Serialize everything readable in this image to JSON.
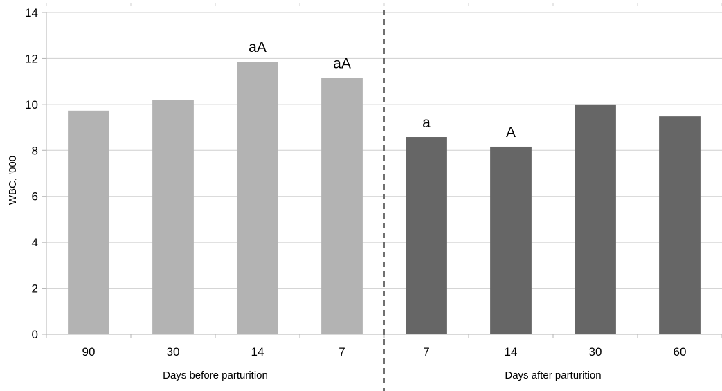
{
  "chart_data": {
    "type": "bar",
    "categories": [
      "90",
      "30",
      "14",
      "7",
      "7",
      "14",
      "30",
      "60"
    ],
    "values": [
      9.73,
      10.18,
      11.86,
      11.15,
      8.58,
      8.16,
      9.97,
      9.48
    ],
    "annotations": [
      "",
      "",
      "aA",
      "aA",
      "a",
      "A",
      "",
      ""
    ],
    "groups": [
      {
        "label": "Days before parturition",
        "start": 0,
        "end": 3,
        "color": "#b3b3b3"
      },
      {
        "label": "Days after parturition",
        "start": 4,
        "end": 7,
        "color": "#666666"
      }
    ],
    "ylabel": "WBC, '000",
    "ylim": [
      0,
      14
    ],
    "yticks": [
      0,
      2,
      4,
      6,
      8,
      10,
      12,
      14
    ],
    "grid": true,
    "divider": "dashed line between groups"
  }
}
